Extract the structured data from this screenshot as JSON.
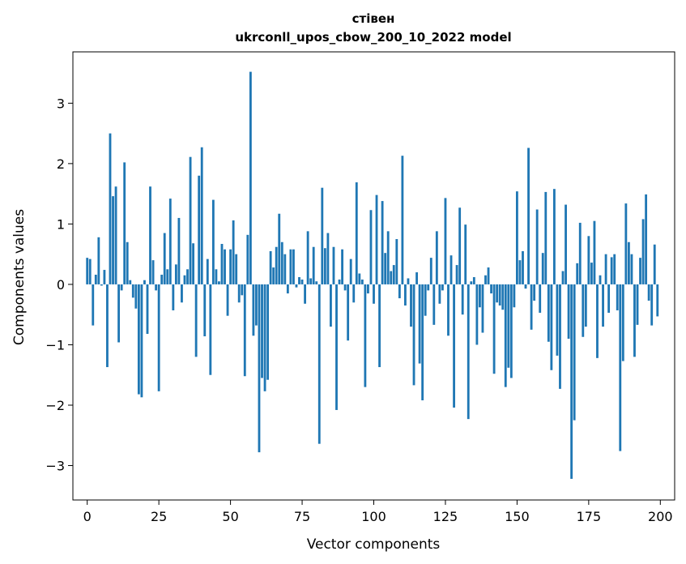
{
  "chart_data": {
    "type": "bar",
    "title": "стівен",
    "subtitle": "ukrconll_upos_cbow_200_10_2022 model",
    "xlabel": "Vector components",
    "ylabel": "Components values",
    "xlim": [
      -5,
      205
    ],
    "ylim": [
      -3.57,
      3.85
    ],
    "xticks": [
      0,
      25,
      50,
      75,
      100,
      125,
      150,
      175,
      200
    ],
    "yticks": [
      -3,
      -2,
      -1,
      0,
      1,
      2,
      3
    ],
    "ytick_labels": [
      "−3",
      "−2",
      "−1",
      "0",
      "1",
      "2",
      "3"
    ],
    "grid": false,
    "bar_color": "#1f77b4",
    "x": [
      0,
      1,
      2,
      3,
      4,
      5,
      6,
      7,
      8,
      9,
      10,
      11,
      12,
      13,
      14,
      15,
      16,
      17,
      18,
      19,
      20,
      21,
      22,
      23,
      24,
      25,
      26,
      27,
      28,
      29,
      30,
      31,
      32,
      33,
      34,
      35,
      36,
      37,
      38,
      39,
      40,
      41,
      42,
      43,
      44,
      45,
      46,
      47,
      48,
      49,
      50,
      51,
      52,
      53,
      54,
      55,
      56,
      57,
      58,
      59,
      60,
      61,
      62,
      63,
      64,
      65,
      66,
      67,
      68,
      69,
      70,
      71,
      72,
      73,
      74,
      75,
      76,
      77,
      78,
      79,
      80,
      81,
      82,
      83,
      84,
      85,
      86,
      87,
      88,
      89,
      90,
      91,
      92,
      93,
      94,
      95,
      96,
      97,
      98,
      99,
      100,
      101,
      102,
      103,
      104,
      105,
      106,
      107,
      108,
      109,
      110,
      111,
      112,
      113,
      114,
      115,
      116,
      117,
      118,
      119,
      120,
      121,
      122,
      123,
      124,
      125,
      126,
      127,
      128,
      129,
      130,
      131,
      132,
      133,
      134,
      135,
      136,
      137,
      138,
      139,
      140,
      141,
      142,
      143,
      144,
      145,
      146,
      147,
      148,
      149,
      150,
      151,
      152,
      153,
      154,
      155,
      156,
      157,
      158,
      159,
      160,
      161,
      162,
      163,
      164,
      165,
      166,
      167,
      168,
      169,
      170,
      171,
      172,
      173,
      174,
      175,
      176,
      177,
      178,
      179,
      180,
      181,
      182,
      183,
      184,
      185,
      186,
      187,
      188,
      189,
      190,
      191,
      192,
      193,
      194,
      195,
      196,
      197,
      198,
      199
    ],
    "values": [
      0.44,
      0.42,
      -0.68,
      0.16,
      0.78,
      -0.02,
      0.24,
      -1.37,
      2.5,
      1.46,
      1.62,
      -0.96,
      -0.1,
      2.02,
      0.7,
      0.07,
      -0.22,
      -0.4,
      -1.82,
      -1.87,
      0.07,
      -0.82,
      1.62,
      0.4,
      -0.1,
      -1.77,
      0.16,
      0.85,
      0.25,
      1.42,
      -0.43,
      0.33,
      1.1,
      -0.3,
      0.15,
      0.25,
      2.11,
      0.68,
      -1.2,
      1.8,
      2.27,
      -0.86,
      0.42,
      -1.5,
      1.4,
      0.25,
      0.05,
      0.67,
      0.58,
      -0.52,
      0.58,
      1.06,
      0.5,
      -0.3,
      -0.18,
      -1.52,
      0.82,
      3.52,
      -0.85,
      -0.68,
      -2.78,
      -1.55,
      -1.77,
      -1.58,
      0.55,
      0.28,
      0.62,
      1.17,
      0.7,
      0.5,
      -0.15,
      0.58,
      0.58,
      -0.05,
      0.12,
      0.08,
      -0.32,
      0.88,
      0.1,
      0.62,
      0.05,
      -2.64,
      1.6,
      0.6,
      0.85,
      -0.7,
      0.62,
      -2.08,
      0.08,
      0.58,
      -0.1,
      -0.93,
      0.42,
      -0.3,
      1.69,
      0.18,
      0.08,
      -1.7,
      -0.15,
      1.23,
      -0.32,
      1.48,
      -1.37,
      1.38,
      0.52,
      0.88,
      0.22,
      0.32,
      0.75,
      -0.23,
      2.13,
      -0.35,
      0.1,
      -0.7,
      -1.67,
      0.2,
      -1.31,
      -1.92,
      -0.52,
      -0.1,
      0.44,
      -0.67,
      0.88,
      -0.32,
      -0.1,
      1.43,
      -0.85,
      0.48,
      -2.04,
      0.32,
      1.27,
      -0.5,
      0.99,
      -2.23,
      0.05,
      0.12,
      -1.0,
      -0.38,
      -0.8,
      0.15,
      0.28,
      -0.15,
      -1.48,
      -0.3,
      -0.35,
      -0.42,
      -1.7,
      -1.38,
      -1.55,
      -0.38,
      1.54,
      0.4,
      0.55,
      -0.07,
      2.26,
      -0.75,
      -0.27,
      1.24,
      -0.47,
      0.52,
      1.53,
      -0.95,
      -1.42,
      1.58,
      -1.18,
      -1.73,
      0.22,
      1.32,
      -0.9,
      -3.22,
      -2.25,
      0.35,
      1.02,
      -0.87,
      -0.7,
      0.8,
      0.36,
      1.05,
      -1.22,
      0.15,
      -0.7,
      0.5,
      -0.47,
      0.45,
      0.5,
      -0.43,
      -2.76,
      -1.27,
      1.34,
      0.7,
      0.5,
      -1.2,
      -0.67,
      0.44,
      1.08,
      1.49,
      -0.27,
      -0.68,
      0.66,
      -0.53
    ]
  }
}
